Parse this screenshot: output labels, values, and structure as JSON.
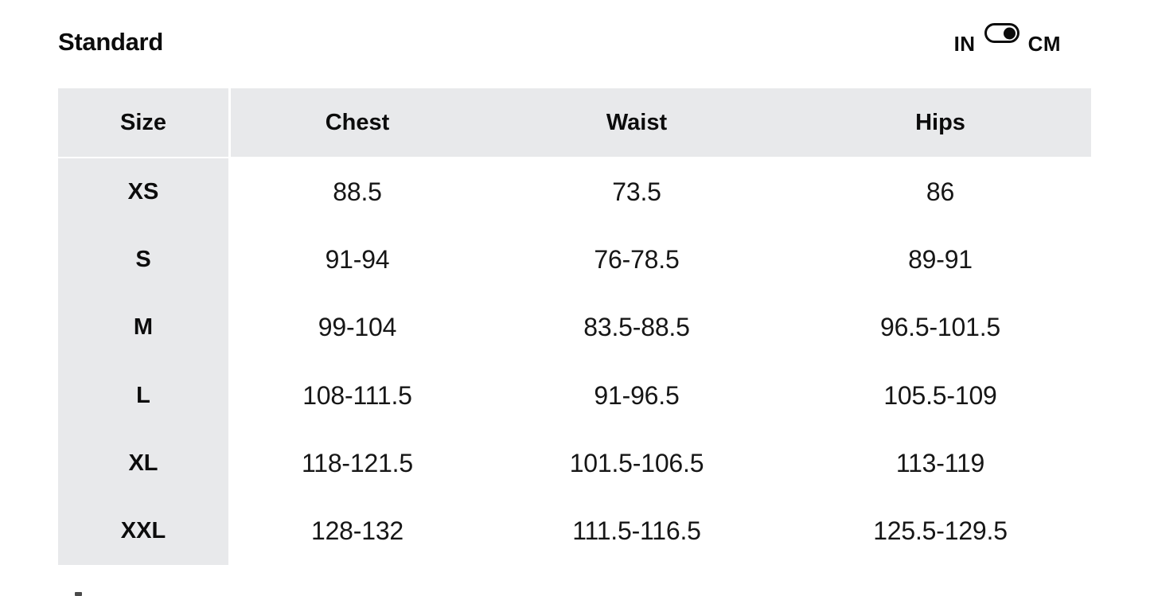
{
  "title": "Standard",
  "unit_toggle": {
    "left_label": "IN",
    "right_label": "CM",
    "selected": "CM"
  },
  "size_table": {
    "columns": [
      "Size",
      "Chest",
      "Waist",
      "Hips"
    ],
    "rows": [
      {
        "size": "XS",
        "chest": "88.5",
        "waist": "73.5",
        "hips": "86"
      },
      {
        "size": "S",
        "chest": "91-94",
        "waist": "76-78.5",
        "hips": "89-91"
      },
      {
        "size": "M",
        "chest": "99-104",
        "waist": "83.5-88.5",
        "hips": "96.5-101.5"
      },
      {
        "size": "L",
        "chest": "108-111.5",
        "waist": "91-96.5",
        "hips": "105.5-109"
      },
      {
        "size": "XL",
        "chest": "118-121.5",
        "waist": "101.5-106.5",
        "hips": "113-119"
      },
      {
        "size": "XXL",
        "chest": "128-132",
        "waist": "111.5-116.5",
        "hips": "125.5-129.5"
      }
    ]
  },
  "colors": {
    "table_header_bg": "#e8e9eb",
    "size_column_bg": "#e8e9eb",
    "text": "#0c0c0c",
    "toggle": "#0c0c0c",
    "page_bg": "#ffffff"
  }
}
